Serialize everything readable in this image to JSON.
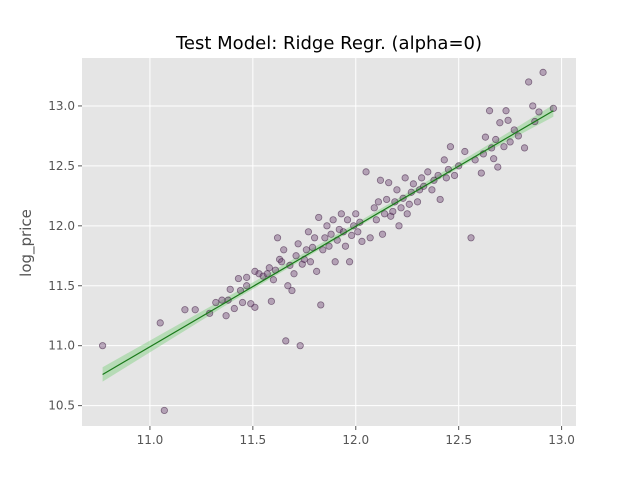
{
  "colors": {
    "plot_background": "#e5e5e5",
    "grid": "#ffffff",
    "tick_text": "#555555",
    "title_text": "#000000",
    "point_fill": "#6a3d6e",
    "point_edge": "#3a1a3e",
    "fit_line": "#1a7a1a",
    "confidence_band": "#8fd48f"
  },
  "chart_data": {
    "type": "scatter",
    "title": "Test Model: Ridge Regr. (alpha=0)",
    "xlabel": "",
    "ylabel": "log_price",
    "xlim": [
      10.67,
      13.07
    ],
    "ylim": [
      10.33,
      13.4
    ],
    "xticks": [
      11.0,
      11.5,
      12.0,
      12.5,
      13.0
    ],
    "xtick_labels": [
      "11.0",
      "11.5",
      "12.0",
      "12.5",
      "13.0"
    ],
    "yticks": [
      10.5,
      11.0,
      11.5,
      12.0,
      12.5,
      13.0
    ],
    "ytick_labels": [
      "10.5",
      "11.0",
      "11.5",
      "12.0",
      "12.5",
      "13.0"
    ],
    "grid": true,
    "legend": "none",
    "series": [
      {
        "kind": "points",
        "points": [
          [
            10.77,
            11.0
          ],
          [
            11.05,
            11.19
          ],
          [
            11.07,
            10.46
          ],
          [
            11.17,
            11.3
          ],
          [
            11.22,
            11.3
          ],
          [
            11.29,
            11.27
          ],
          [
            11.32,
            11.36
          ],
          [
            11.35,
            11.38
          ],
          [
            11.37,
            11.25
          ],
          [
            11.38,
            11.38
          ],
          [
            11.39,
            11.47
          ],
          [
            11.41,
            11.31
          ],
          [
            11.43,
            11.56
          ],
          [
            11.44,
            11.46
          ],
          [
            11.45,
            11.36
          ],
          [
            11.47,
            11.5
          ],
          [
            11.47,
            11.57
          ],
          [
            11.49,
            11.35
          ],
          [
            11.51,
            11.32
          ],
          [
            11.51,
            11.62
          ],
          [
            11.53,
            11.6
          ],
          [
            11.55,
            11.58
          ],
          [
            11.57,
            11.6
          ],
          [
            11.58,
            11.65
          ],
          [
            11.59,
            11.37
          ],
          [
            11.6,
            11.55
          ],
          [
            11.61,
            11.63
          ],
          [
            11.62,
            11.9
          ],
          [
            11.63,
            11.72
          ],
          [
            11.64,
            11.7
          ],
          [
            11.65,
            11.8
          ],
          [
            11.66,
            11.04
          ],
          [
            11.67,
            11.5
          ],
          [
            11.68,
            11.67
          ],
          [
            11.69,
            11.46
          ],
          [
            11.7,
            11.6
          ],
          [
            11.71,
            11.75
          ],
          [
            11.72,
            11.85
          ],
          [
            11.73,
            11.0
          ],
          [
            11.74,
            11.68
          ],
          [
            11.75,
            11.72
          ],
          [
            11.76,
            11.8
          ],
          [
            11.77,
            11.95
          ],
          [
            11.78,
            11.7
          ],
          [
            11.79,
            11.82
          ],
          [
            11.8,
            11.9
          ],
          [
            11.81,
            11.62
          ],
          [
            11.82,
            12.07
          ],
          [
            11.83,
            11.34
          ],
          [
            11.84,
            11.8
          ],
          [
            11.85,
            11.9
          ],
          [
            11.86,
            12.0
          ],
          [
            11.87,
            11.83
          ],
          [
            11.88,
            11.93
          ],
          [
            11.89,
            12.05
          ],
          [
            11.9,
            11.7
          ],
          [
            11.91,
            11.88
          ],
          [
            11.92,
            11.97
          ],
          [
            11.93,
            12.1
          ],
          [
            11.94,
            11.95
          ],
          [
            11.95,
            11.83
          ],
          [
            11.96,
            12.05
          ],
          [
            11.97,
            11.7
          ],
          [
            11.98,
            11.92
          ],
          [
            11.99,
            12.0
          ],
          [
            12.0,
            12.1
          ],
          [
            12.01,
            11.95
          ],
          [
            12.02,
            12.03
          ],
          [
            12.03,
            11.87
          ],
          [
            12.05,
            12.45
          ],
          [
            12.07,
            11.9
          ],
          [
            12.09,
            12.15
          ],
          [
            12.1,
            12.05
          ],
          [
            12.11,
            12.2
          ],
          [
            12.12,
            12.38
          ],
          [
            12.13,
            11.93
          ],
          [
            12.14,
            12.1
          ],
          [
            12.15,
            12.22
          ],
          [
            12.16,
            12.36
          ],
          [
            12.17,
            12.08
          ],
          [
            12.18,
            12.12
          ],
          [
            12.19,
            12.2
          ],
          [
            12.2,
            12.3
          ],
          [
            12.21,
            12.0
          ],
          [
            12.22,
            12.15
          ],
          [
            12.23,
            12.23
          ],
          [
            12.24,
            12.4
          ],
          [
            12.25,
            12.1
          ],
          [
            12.26,
            12.18
          ],
          [
            12.27,
            12.28
          ],
          [
            12.28,
            12.35
          ],
          [
            12.3,
            12.2
          ],
          [
            12.31,
            12.3
          ],
          [
            12.32,
            12.4
          ],
          [
            12.33,
            12.33
          ],
          [
            12.35,
            12.45
          ],
          [
            12.37,
            12.3
          ],
          [
            12.38,
            12.38
          ],
          [
            12.4,
            12.42
          ],
          [
            12.41,
            12.22
          ],
          [
            12.43,
            12.55
          ],
          [
            12.44,
            12.4
          ],
          [
            12.45,
            12.47
          ],
          [
            12.46,
            12.66
          ],
          [
            12.48,
            12.42
          ],
          [
            12.5,
            12.5
          ],
          [
            12.53,
            12.62
          ],
          [
            12.56,
            11.9
          ],
          [
            12.58,
            12.55
          ],
          [
            12.61,
            12.44
          ],
          [
            12.62,
            12.6
          ],
          [
            12.63,
            12.74
          ],
          [
            12.65,
            12.96
          ],
          [
            12.66,
            12.65
          ],
          [
            12.67,
            12.56
          ],
          [
            12.68,
            12.72
          ],
          [
            12.69,
            12.49
          ],
          [
            12.7,
            12.86
          ],
          [
            12.72,
            12.66
          ],
          [
            12.73,
            12.96
          ],
          [
            12.74,
            12.88
          ],
          [
            12.75,
            12.7
          ],
          [
            12.77,
            12.8
          ],
          [
            12.79,
            12.75
          ],
          [
            12.82,
            12.65
          ],
          [
            12.84,
            13.2
          ],
          [
            12.86,
            13.0
          ],
          [
            12.87,
            12.87
          ],
          [
            12.89,
            12.95
          ],
          [
            12.91,
            13.28
          ],
          [
            12.96,
            12.98
          ]
        ]
      },
      {
        "kind": "fit",
        "x": [
          10.77,
          12.96
        ],
        "y": [
          10.76,
          12.96
        ]
      },
      {
        "kind": "band",
        "x": [
          10.77,
          11.4,
          12.0,
          12.6,
          12.96
        ],
        "lower": [
          10.7,
          11.37,
          11.98,
          12.58,
          12.91
        ],
        "upper": [
          10.82,
          11.43,
          12.02,
          12.63,
          13.01
        ]
      }
    ]
  }
}
